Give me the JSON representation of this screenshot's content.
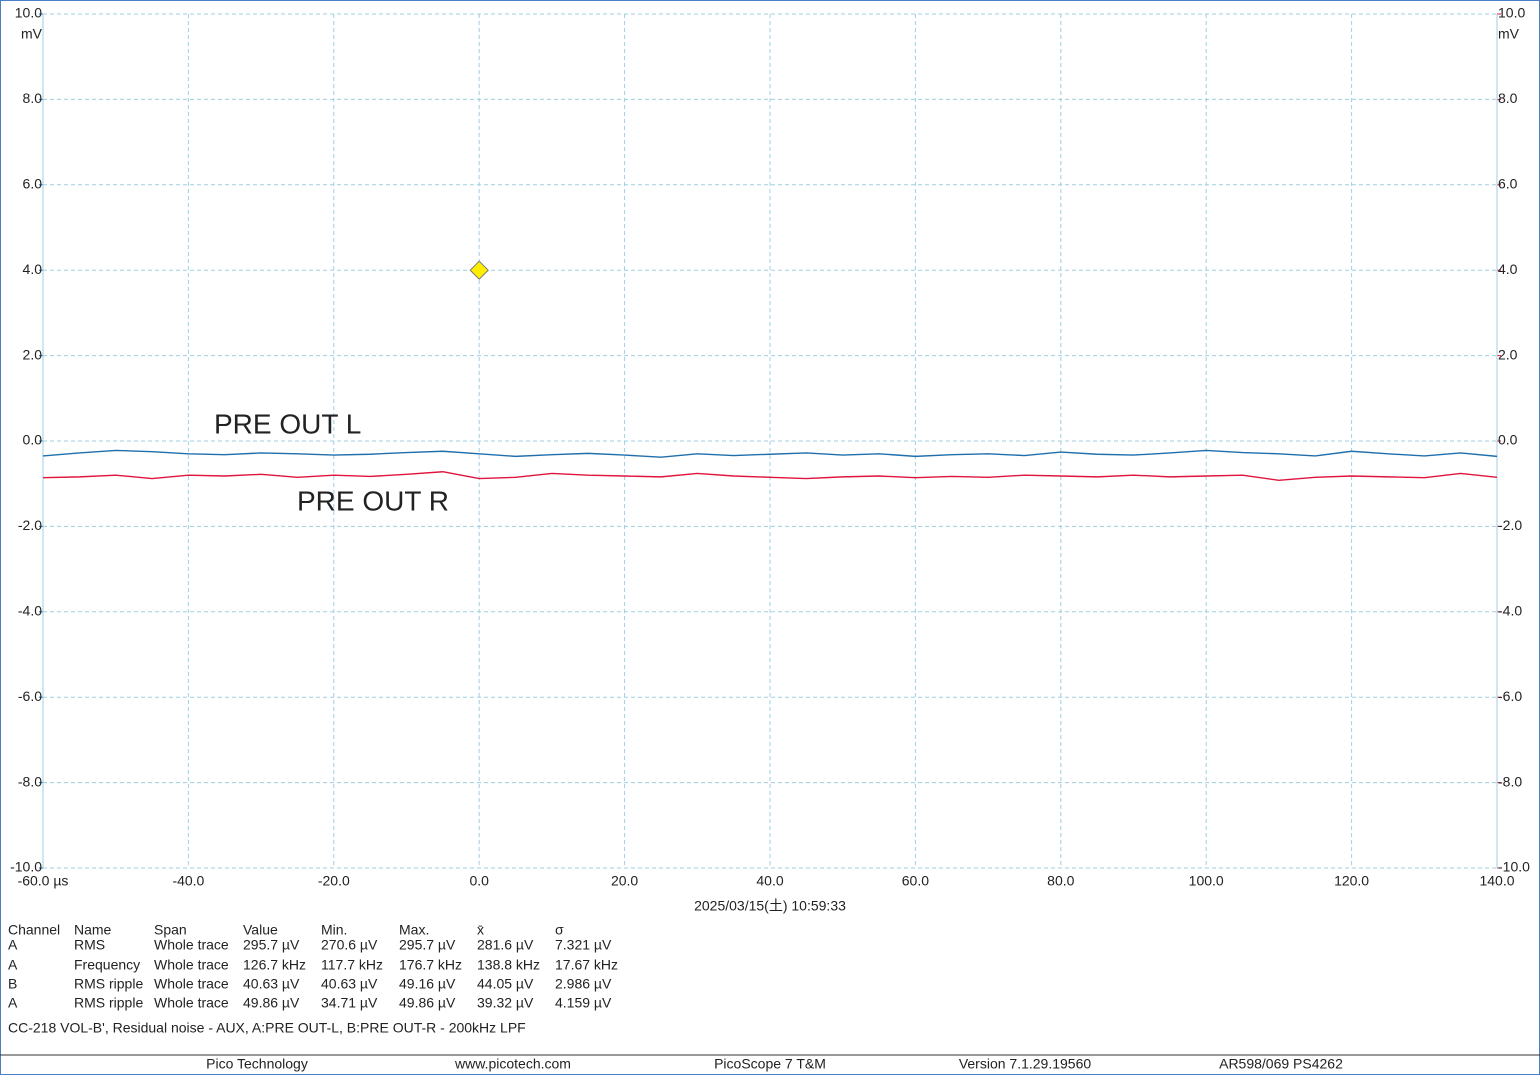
{
  "chart_data": {
    "type": "line",
    "x": [
      -60,
      -55,
      -50,
      -45,
      -40,
      -35,
      -30,
      -25,
      -20,
      -15,
      -10,
      -5,
      0,
      5,
      10,
      15,
      20,
      25,
      30,
      35,
      40,
      45,
      50,
      55,
      60,
      65,
      70,
      75,
      80,
      85,
      90,
      95,
      100,
      105,
      110,
      115,
      120,
      125,
      130,
      135,
      140
    ],
    "series": [
      {
        "name": "PRE OUT L",
        "color": "#1f6fad",
        "axis": "y",
        "values": [
          -0.35,
          -0.28,
          -0.22,
          -0.25,
          -0.3,
          -0.32,
          -0.28,
          -0.3,
          -0.33,
          -0.31,
          -0.27,
          -0.24,
          -0.3,
          -0.36,
          -0.32,
          -0.29,
          -0.33,
          -0.38,
          -0.3,
          -0.34,
          -0.31,
          -0.28,
          -0.33,
          -0.3,
          -0.36,
          -0.32,
          -0.3,
          -0.34,
          -0.26,
          -0.31,
          -0.33,
          -0.28,
          -0.22,
          -0.27,
          -0.3,
          -0.35,
          -0.24,
          -0.3,
          -0.35,
          -0.28,
          -0.36
        ]
      },
      {
        "name": "PRE OUT R",
        "color": "#e0143c",
        "axis": "y2",
        "values": [
          -0.86,
          -0.84,
          -0.8,
          -0.88,
          -0.8,
          -0.82,
          -0.78,
          -0.85,
          -0.8,
          -0.83,
          -0.78,
          -0.72,
          -0.88,
          -0.85,
          -0.76,
          -0.8,
          -0.82,
          -0.84,
          -0.76,
          -0.82,
          -0.85,
          -0.88,
          -0.84,
          -0.82,
          -0.86,
          -0.83,
          -0.85,
          -0.8,
          -0.82,
          -0.84,
          -0.8,
          -0.84,
          -0.82,
          -0.8,
          -0.92,
          -0.85,
          -0.82,
          -0.84,
          -0.86,
          -0.76,
          -0.85
        ]
      }
    ],
    "xlim": [
      -60,
      140
    ],
    "xticks": [
      {
        "value": -60,
        "label": "-60.0 µs"
      },
      {
        "value": -40,
        "label": "-40.0"
      },
      {
        "value": -20,
        "label": "-20.0"
      },
      {
        "value": 0,
        "label": "0.0"
      },
      {
        "value": 20,
        "label": "20.0"
      },
      {
        "value": 40,
        "label": "40.0"
      },
      {
        "value": 60,
        "label": "60.0"
      },
      {
        "value": 80,
        "label": "80.0"
      },
      {
        "value": 100,
        "label": "100.0"
      },
      {
        "value": 120,
        "label": "120.0"
      },
      {
        "value": 140,
        "label": "140.0"
      }
    ],
    "ylim": [
      -10,
      10
    ],
    "yticks": [
      {
        "value": -10,
        "label": "-10.0"
      },
      {
        "value": -8,
        "label": "-8.0"
      },
      {
        "value": -6,
        "label": "-6.0"
      },
      {
        "value": -4,
        "label": "-4.0"
      },
      {
        "value": -2,
        "label": "-2.0"
      },
      {
        "value": 0,
        "label": "0.0"
      },
      {
        "value": 2,
        "label": "2.0"
      },
      {
        "value": 4,
        "label": "4.0"
      },
      {
        "value": 6,
        "label": "6.0"
      },
      {
        "value": 8,
        "label": "8.0"
      },
      {
        "value": 10,
        "label": "10.0"
      }
    ],
    "y_unit": "mV",
    "y2lim": [
      -10,
      10
    ],
    "y2ticks": [
      {
        "value": -10,
        "label": "-10.0"
      },
      {
        "value": -8,
        "label": "-8.0"
      },
      {
        "value": -6,
        "label": "-6.0"
      },
      {
        "value": -4,
        "label": "-4.0"
      },
      {
        "value": -2,
        "label": "-2.0"
      },
      {
        "value": 0,
        "label": "0.0"
      },
      {
        "value": 2,
        "label": "2.0"
      },
      {
        "value": 4,
        "label": "4.0"
      },
      {
        "value": 6,
        "label": "6.0"
      },
      {
        "value": 8,
        "label": "8.0"
      },
      {
        "value": 10,
        "label": "10.0"
      }
    ],
    "y2_unit": "mV",
    "grid": true,
    "trigger": {
      "x": 0,
      "y": 4,
      "color": "#ffee00"
    },
    "timestamp": "2025/03/15(土) 10:59:33"
  },
  "measurements": {
    "columns": [
      "Channel",
      "Name",
      "Span",
      "Value",
      "Min.",
      "Max.",
      "x̄",
      "σ"
    ],
    "rows": [
      [
        "A",
        "RMS",
        "Whole trace",
        "295.7 µV",
        "270.6 µV",
        "295.7 µV",
        "281.6 µV",
        "7.321 µV"
      ],
      [
        "A",
        "Frequency",
        "Whole trace",
        "126.7 kHz",
        "117.7 kHz",
        "176.7 kHz",
        "138.8 kHz",
        "17.67 kHz"
      ],
      [
        "B",
        "RMS ripple",
        "Whole trace",
        "40.63 µV",
        "40.63 µV",
        "49.16 µV",
        "44.05 µV",
        "2.986 µV"
      ],
      [
        "A",
        "RMS ripple",
        "Whole trace",
        "49.86 µV",
        "34.71 µV",
        "49.86 µV",
        "39.32 µV",
        "4.159 µV"
      ]
    ]
  },
  "caption": "CC-218 VOL-B', Residual noise - AUX, A:PRE OUT-L, B:PRE OUT-R - 200kHz LPF",
  "footer": [
    "Pico Technology",
    "www.picotech.com",
    "PicoScope 7 T&M",
    "Version 7.1.29.19560",
    "AR598/069 PS4262"
  ]
}
